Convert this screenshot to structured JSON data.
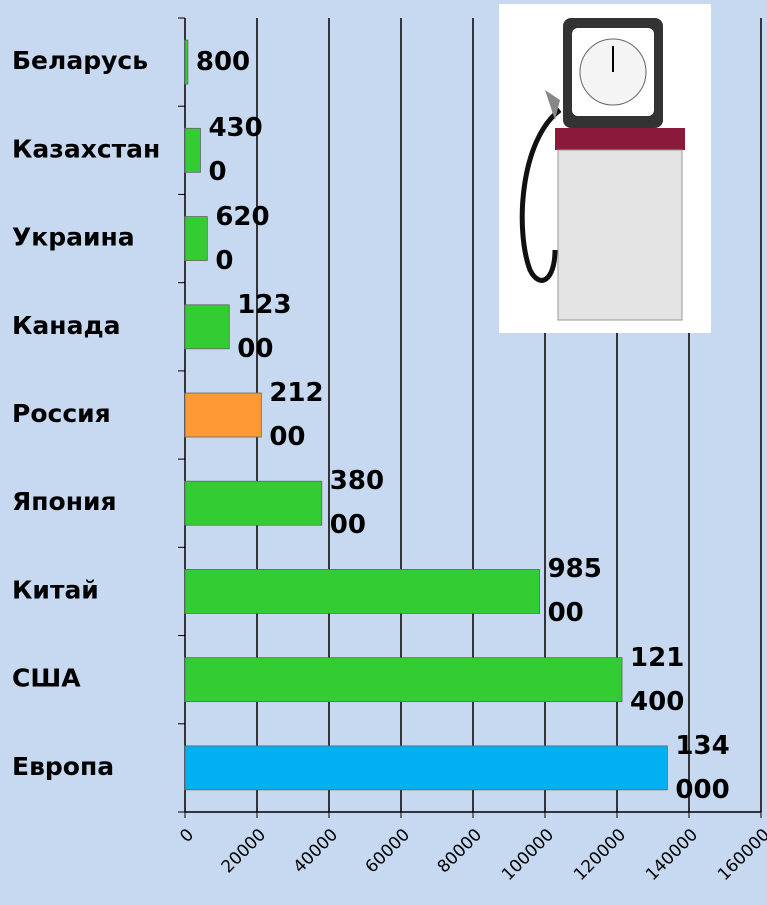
{
  "chart_data": {
    "type": "bar",
    "orientation": "horizontal",
    "categories": [
      "Беларусь",
      "Казахстан",
      "Украина",
      "Канада",
      "Россия",
      "Япония",
      "Китай",
      "США",
      "Европа"
    ],
    "values": [
      800,
      4300,
      6200,
      12300,
      21200,
      38000,
      98500,
      121400,
      134000
    ],
    "colors": [
      "#33cc33",
      "#33cc33",
      "#33cc33",
      "#33cc33",
      "#ff9933",
      "#33cc33",
      "#33cc33",
      "#33cc33",
      "#00b0f0"
    ],
    "xlim": [
      0,
      160000
    ],
    "xticks": [
      0,
      20000,
      40000,
      60000,
      80000,
      100000,
      120000,
      140000,
      160000
    ],
    "grid": true
  }
}
